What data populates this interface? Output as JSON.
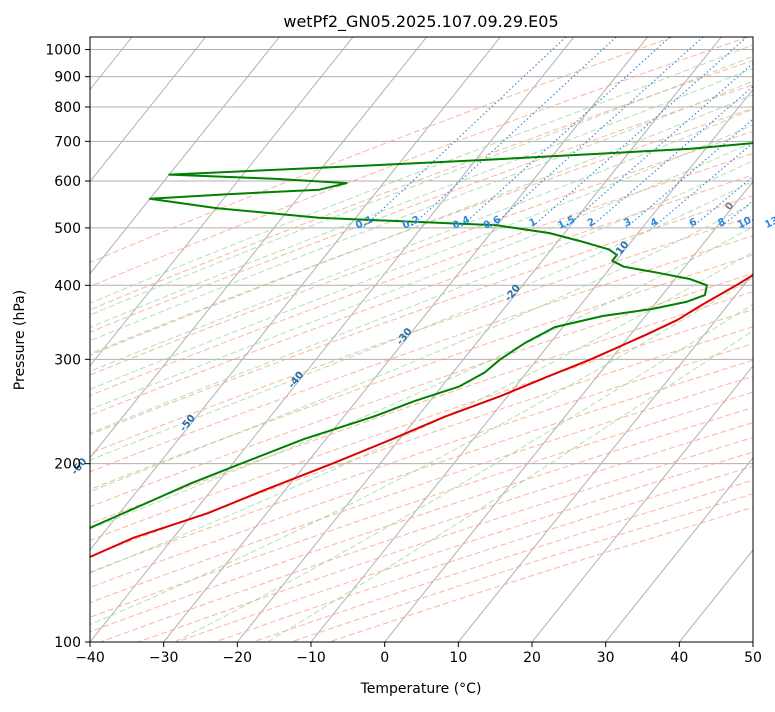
{
  "chart_data": {
    "type": "line",
    "subtype": "skew-t log-p diagram",
    "title": "wetPf2_GN05.2025.107.09.29.E05",
    "xlabel": "Temperature (°C)",
    "ylabel": "Pressure (hPa)",
    "xlim": [
      -40,
      50
    ],
    "ylim": [
      1050,
      100
    ],
    "y_scale": "log",
    "grid": true,
    "x_ticks": [
      -40,
      -30,
      -20,
      -10,
      0,
      10,
      20,
      30,
      40,
      50
    ],
    "x_tick_labels": [
      "−40",
      "−30",
      "−20",
      "−10",
      "0",
      "10",
      "20",
      "30",
      "40",
      "50"
    ],
    "y_ticks": [
      100,
      200,
      300,
      400,
      500,
      600,
      700,
      800,
      900,
      1000
    ],
    "y_tick_labels": [
      "100",
      "200",
      "300",
      "400",
      "500",
      "600",
      "700",
      "800",
      "900",
      "1000"
    ],
    "series": [
      {
        "role": "temperature",
        "color": "#e00000",
        "points": [
          [
            1000,
            24.3
          ],
          [
            970,
            21.5
          ],
          [
            950,
            20.3
          ],
          [
            900,
            18.8
          ],
          [
            850,
            17.9
          ],
          [
            800,
            16.2
          ],
          [
            750,
            14.9
          ],
          [
            700,
            14.5
          ],
          [
            680,
            15.2
          ],
          [
            650,
            16.0
          ],
          [
            620,
            17.1
          ],
          [
            600,
            17.9
          ],
          [
            580,
            18.3
          ],
          [
            560,
            17.8
          ],
          [
            540,
            17.0
          ],
          [
            520,
            16.8
          ],
          [
            500,
            15.9
          ],
          [
            480,
            14.9
          ],
          [
            460,
            13.5
          ],
          [
            440,
            12.1
          ],
          [
            420,
            10.4
          ],
          [
            400,
            9.0
          ],
          [
            370,
            6.4
          ],
          [
            350,
            4.8
          ],
          [
            330,
            2.1
          ],
          [
            300,
            -2.7
          ],
          [
            280,
            -6.8
          ],
          [
            260,
            -11.0
          ],
          [
            240,
            -16.3
          ],
          [
            220,
            -21.0
          ],
          [
            200,
            -26.5
          ],
          [
            180,
            -33.0
          ],
          [
            165,
            -38.0
          ],
          [
            150,
            -45.4
          ],
          [
            135,
            -50.8
          ],
          [
            125,
            -53.8
          ],
          [
            115,
            -55.2
          ],
          [
            110,
            -56.6
          ],
          [
            105,
            -58.0
          ],
          [
            100,
            -60.6
          ]
        ]
      },
      {
        "role": "dewpoint",
        "color": "#008000",
        "points": [
          [
            990,
            18.7
          ],
          [
            970,
            18.7
          ],
          [
            950,
            17.6
          ],
          [
            930,
            15.3
          ],
          [
            900,
            12.3
          ],
          [
            870,
            10.8
          ],
          [
            850,
            10.0
          ],
          [
            800,
            8.1
          ],
          [
            760,
            5.9
          ],
          [
            720,
            2.4
          ],
          [
            700,
            -1.6
          ],
          [
            680,
            -12.0
          ],
          [
            650,
            -40.0
          ],
          [
            630,
            -62.0
          ],
          [
            615,
            -80.0
          ],
          [
            605,
            -65.0
          ],
          [
            595,
            -55.0
          ],
          [
            580,
            -58.0
          ],
          [
            570,
            -70.0
          ],
          [
            560,
            -80.0
          ],
          [
            540,
            -70.0
          ],
          [
            520,
            -55.0
          ],
          [
            505,
            -30.0
          ],
          [
            490,
            -22.0
          ],
          [
            475,
            -17.0
          ],
          [
            460,
            -12.2
          ],
          [
            450,
            -10.5
          ],
          [
            440,
            -10.5
          ],
          [
            430,
            -8.3
          ],
          [
            420,
            -3.0
          ],
          [
            410,
            2.0
          ],
          [
            400,
            5.0
          ],
          [
            385,
            5.8
          ],
          [
            375,
            4.0
          ],
          [
            365,
            0.2
          ],
          [
            355,
            -5.8
          ],
          [
            340,
            -11.1
          ],
          [
            320,
            -13.4
          ],
          [
            300,
            -15.0
          ],
          [
            285,
            -15.7
          ],
          [
            270,
            -17.6
          ],
          [
            255,
            -22.1
          ],
          [
            240,
            -26.0
          ],
          [
            220,
            -33.0
          ],
          [
            200,
            -38.9
          ],
          [
            185,
            -43.6
          ],
          [
            170,
            -47.9
          ],
          [
            150,
            -54.4
          ],
          [
            140,
            -57.3
          ],
          [
            130,
            -61.4
          ],
          [
            120,
            -64.2
          ],
          [
            110,
            -64.6
          ],
          [
            105,
            -64.1
          ],
          [
            100,
            -64.2
          ]
        ]
      }
    ],
    "dry_adiabat_labels": [
      "-100",
      "-90",
      "-80",
      "-70",
      "-60",
      "-50",
      "-40",
      "-30",
      "-20",
      "-10",
      "0",
      "10",
      "20",
      "30",
      "40"
    ],
    "mixing_ratio_labels": [
      "0.1",
      "0.2",
      "0.4",
      "0.6",
      "1",
      "1.5",
      "2",
      "3",
      "4",
      "6",
      "8",
      "10",
      "13",
      "16",
      "20",
      "25",
      "30",
      "36"
    ],
    "colors": {
      "isotherm": "#b0b0b0",
      "dry_adiabat": "#f7a585",
      "moist_adiabat": "#9fd39f",
      "mixing_ratio": "#3b8fe0",
      "dry_adiabat_label_cold": "#2a6fa8",
      "dry_adiabat_label_warm": "#d63030",
      "mixing_ratio_label": "#2e86de"
    }
  }
}
